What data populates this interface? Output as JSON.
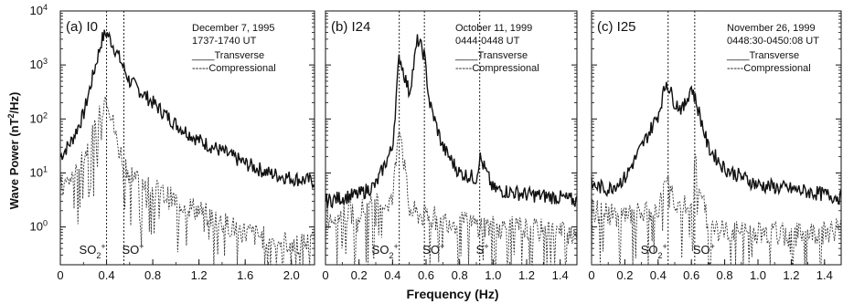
{
  "chart_data": [
    {
      "type": "line",
      "panel": "(a) I0",
      "date": "December 7, 1995",
      "time": "1737-1740 UT",
      "legend": [
        "Transverse",
        "Compressional"
      ],
      "xlim": [
        0,
        2.2
      ],
      "xticks": [
        "0",
        "0.4",
        "0.8",
        "1.2",
        "1.6",
        "2.0"
      ],
      "ylim_log10": [
        -0.7,
        4
      ],
      "yticks": [
        "10^0",
        "10^1",
        "10^2",
        "10^3",
        "10^4"
      ],
      "markers": [
        {
          "x": 0.4,
          "label": "SO2+"
        },
        {
          "x": 0.55,
          "label": "SO+"
        }
      ],
      "series": [
        {
          "name": "Transverse",
          "x": [
            0,
            0.1,
            0.2,
            0.3,
            0.36,
            0.4,
            0.45,
            0.5,
            0.6,
            0.8,
            1.0,
            1.2,
            1.4,
            1.6,
            1.8,
            2.0,
            2.2
          ],
          "y": [
            20,
            40,
            120,
            900,
            3000,
            4000,
            2500,
            1500,
            500,
            200,
            80,
            40,
            25,
            15,
            10,
            8,
            7
          ]
        },
        {
          "name": "Compressional",
          "x": [
            0,
            0.1,
            0.2,
            0.3,
            0.4,
            0.5,
            0.6,
            0.8,
            1.0,
            1.2,
            1.4,
            1.6,
            1.8,
            2.0,
            2.2
          ],
          "y": [
            5,
            8,
            20,
            60,
            300,
            30,
            10,
            5,
            3,
            2,
            1.2,
            0.8,
            0.6,
            0.5,
            0.5
          ]
        }
      ]
    },
    {
      "type": "line",
      "panel": "(b) I24",
      "date": "October 11, 1999",
      "time": "0444-0448 UT",
      "legend": [
        "Transverse",
        "Compressional"
      ],
      "xlim": [
        0,
        1.5
      ],
      "xticks": [
        "0",
        "0.2",
        "0.4",
        "0.6",
        "0.8",
        "1.0",
        "1.2",
        "1.4"
      ],
      "ylim_log10": [
        -0.7,
        4
      ],
      "yticks": [
        "10^0",
        "10^1",
        "10^2",
        "10^3",
        "10^4"
      ],
      "markers": [
        {
          "x": 0.44,
          "label": "SO2+"
        },
        {
          "x": 0.59,
          "label": "SO+"
        },
        {
          "x": 0.92,
          "label": "S+"
        }
      ],
      "series": [
        {
          "name": "Transverse",
          "x": [
            0,
            0.1,
            0.2,
            0.3,
            0.4,
            0.44,
            0.5,
            0.55,
            0.59,
            0.62,
            0.7,
            0.8,
            0.9,
            0.92,
            1.0,
            1.2,
            1.4,
            1.5
          ],
          "y": [
            3,
            3.5,
            4,
            6,
            30,
            1500,
            300,
            3000,
            1500,
            200,
            30,
            10,
            8,
            20,
            5,
            4,
            3.5,
            3
          ]
        },
        {
          "name": "Compressional",
          "x": [
            0,
            0.2,
            0.4,
            0.44,
            0.5,
            0.6,
            0.8,
            1.0,
            1.2,
            1.4,
            1.5
          ],
          "y": [
            1.5,
            2,
            3,
            100,
            2,
            1.5,
            1.2,
            1,
            0.9,
            0.8,
            0.8
          ]
        }
      ]
    },
    {
      "type": "line",
      "panel": "(c) I25",
      "date": "November 26, 1999",
      "time": "0448:30-0450:08 UT",
      "legend": [
        "Transverse",
        "Compressional"
      ],
      "xlim": [
        0,
        1.5
      ],
      "xticks": [
        "0",
        "0.2",
        "0.4",
        "0.6",
        "0.8",
        "1.0",
        "1.2",
        "1.4"
      ],
      "ylim_log10": [
        -0.7,
        4
      ],
      "yticks": [
        "10^0",
        "10^1",
        "10^2",
        "10^3",
        "10^4"
      ],
      "markers": [
        {
          "x": 0.46,
          "label": "SO2+"
        },
        {
          "x": 0.62,
          "label": "SO+"
        }
      ],
      "series": [
        {
          "name": "Transverse",
          "x": [
            0,
            0.1,
            0.2,
            0.3,
            0.4,
            0.45,
            0.5,
            0.55,
            0.6,
            0.65,
            0.7,
            0.8,
            1.0,
            1.2,
            1.4,
            1.5
          ],
          "y": [
            6,
            5,
            8,
            30,
            120,
            500,
            200,
            150,
            400,
            120,
            30,
            12,
            6,
            5,
            4,
            3.5
          ]
        },
        {
          "name": "Compressional",
          "x": [
            0,
            0.2,
            0.4,
            0.46,
            0.5,
            0.6,
            0.62,
            0.7,
            0.8,
            1.0,
            1.2,
            1.4,
            1.5
          ],
          "y": [
            2,
            1.5,
            2,
            8,
            3,
            2,
            20,
            1,
            0.8,
            0.8,
            0.7,
            0.8,
            1
          ]
        }
      ]
    }
  ],
  "axes": {
    "ylabel": "Wave Power (nT",
    "ylabel_sup": "2",
    "ylabel_end": "/Hz)",
    "xlabel": "Frequency (Hz)"
  },
  "labels": {
    "panelA": {
      "title": "(a) I0",
      "date": "December 7, 1995",
      "time": "1737-1740 UT"
    },
    "panelB": {
      "title": "(b) I24",
      "date": "October 11, 1999",
      "time": "0444-0448 UT"
    },
    "panelC": {
      "title": "(c) I25",
      "date": "November 26, 1999",
      "time": "0448:30-0450:08 UT"
    },
    "legend_transverse": "____Transverse",
    "legend_compressional": "-----Compressional",
    "tick_pow_base": "10",
    "ions": {
      "so2_base": "SO",
      "so2_sub": "2",
      "plus": "+",
      "so": "SO",
      "s": "S"
    }
  }
}
